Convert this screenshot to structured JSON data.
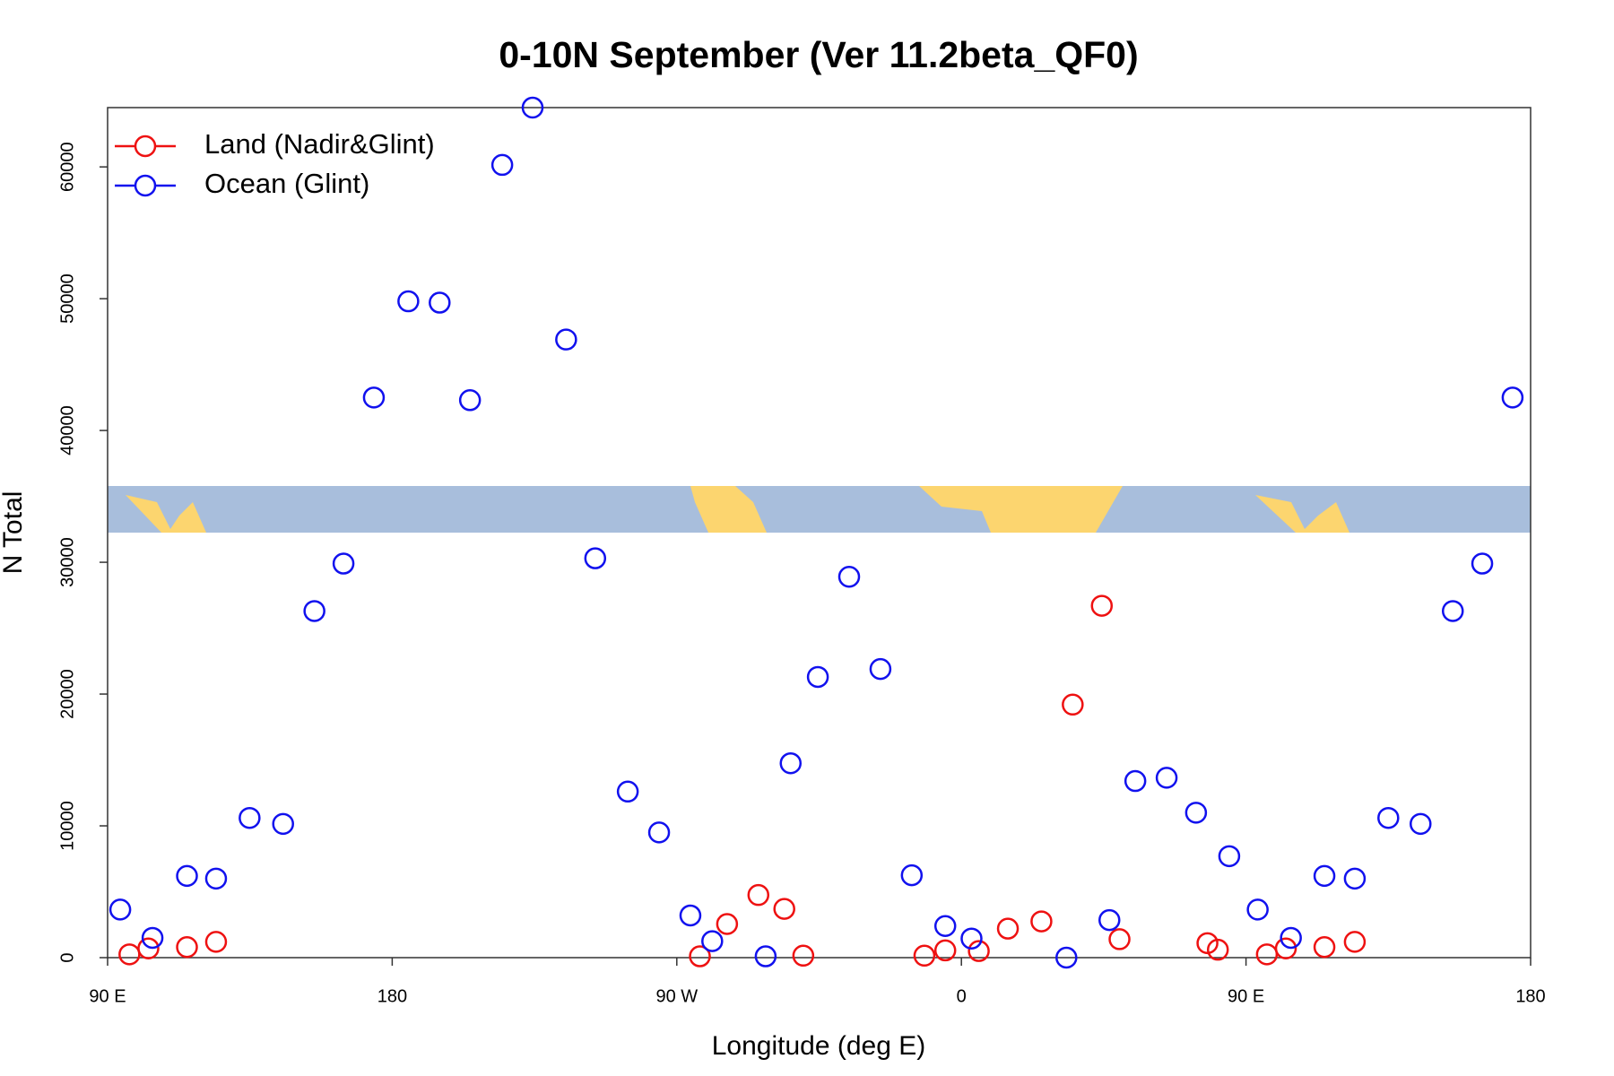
{
  "chart_data": {
    "type": "scatter",
    "title": "0-10N September (Ver 11.2beta_QF0)",
    "x_label": "Longitude (deg E)",
    "y_label": "N Total",
    "xlim": [
      90,
      540
    ],
    "xticks": [
      {
        "value": 90,
        "label": "90 E"
      },
      180,
      {
        "value": 270,
        "label": "90 W"
      },
      {
        "value": 360,
        "label": "0"
      },
      {
        "value": 450,
        "label": "90 E"
      },
      {
        "value": 540,
        "label": "180"
      }
    ],
    "ylim": [
      0,
      64500
    ],
    "yticks": [
      0,
      10000,
      20000,
      30000,
      40000,
      50000,
      60000
    ],
    "legend": "top-left",
    "series": [
      {
        "name": "Land (Nadir&Glint)",
        "color": "#ee1111",
        "x": [
          96.9,
          102.9,
          115.1,
          124.3,
          277.3,
          285.9,
          295.8,
          304.0,
          310.0,
          348.3,
          354.9,
          365.5,
          374.7,
          385.3,
          395.2,
          404.4,
          410.0,
          437.8,
          441.1,
          456.6,
          462.6,
          474.8,
          484.4
        ],
        "values": [
          250,
          700,
          800,
          1200,
          100,
          2550,
          4750,
          3700,
          150,
          150,
          550,
          500,
          2200,
          2750,
          19200,
          26700,
          1400,
          1100,
          600,
          250,
          700,
          800,
          1200
        ]
      },
      {
        "name": "Ocean (Glint)",
        "color": "#1111ee",
        "x": [
          94.0,
          104.2,
          115.1,
          124.3,
          134.9,
          145.5,
          155.4,
          164.6,
          174.2,
          185.1,
          195.0,
          204.6,
          214.8,
          224.4,
          235.0,
          244.2,
          254.5,
          264.4,
          274.3,
          281.2,
          298.1,
          306.0,
          314.6,
          324.5,
          334.4,
          344.3,
          354.9,
          363.2,
          393.2,
          406.8,
          415.0,
          424.9,
          434.2,
          444.7,
          453.7,
          464.2,
          474.8,
          484.4,
          495.0,
          505.2,
          515.4,
          524.7,
          534.3
        ],
        "values": [
          3650,
          1500,
          6200,
          6000,
          10600,
          10150,
          26300,
          29900,
          42500,
          49800,
          49700,
          42300,
          60150,
          64500,
          46900,
          30300,
          12600,
          9500,
          3200,
          1250,
          100,
          14750,
          21300,
          28900,
          21900,
          6250,
          2400,
          1450,
          0,
          2850,
          13400,
          13650,
          11000,
          7700,
          3650,
          1500,
          6200,
          6000,
          10600,
          10150,
          26300,
          29900,
          42500
        ]
      }
    ]
  }
}
